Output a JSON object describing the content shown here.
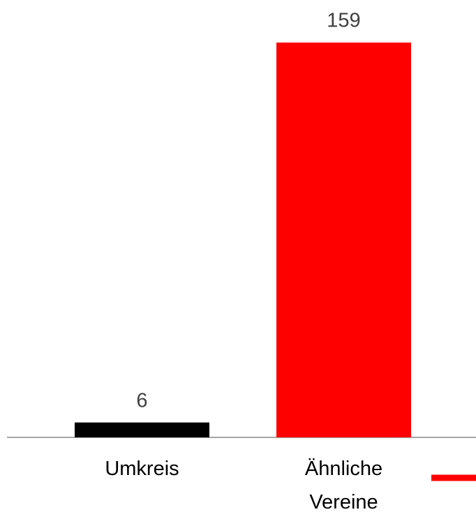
{
  "chart_data": {
    "type": "bar",
    "categories": [
      "Umkreis",
      "Ähnliche Vereine"
    ],
    "values": [
      6,
      159
    ],
    "colors": [
      "#000000",
      "#ff0000"
    ]
  }
}
